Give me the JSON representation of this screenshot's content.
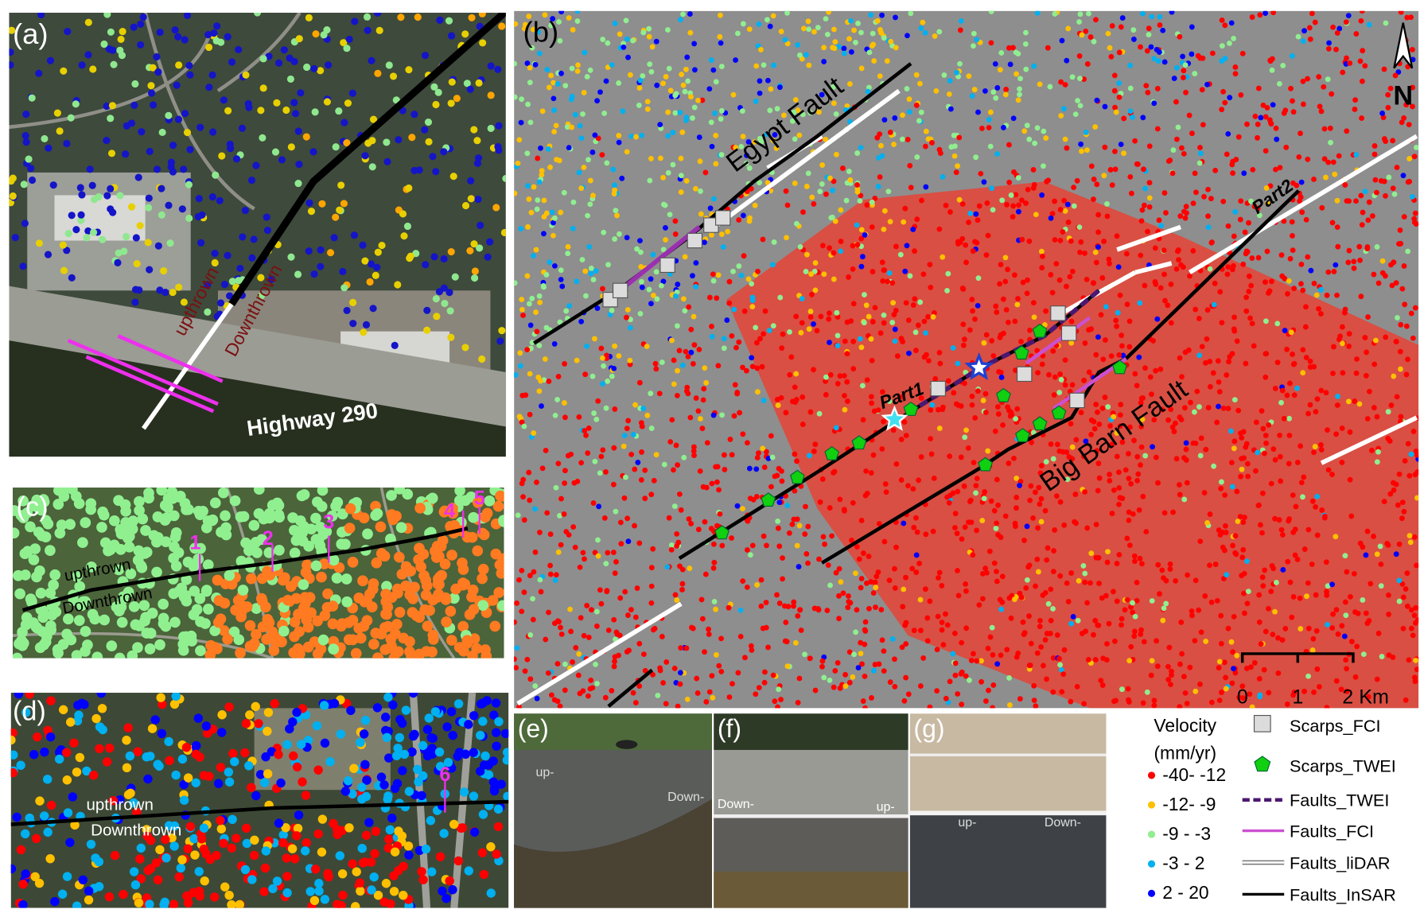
{
  "panels": {
    "a": {
      "label": "(a)",
      "upthrown": "upthrown",
      "downthrown": "Downthrown",
      "highway": "Highway 290"
    },
    "b": {
      "label": "(b)",
      "egypt_fault": "Egypt Fault",
      "big_barn_fault": "Big Barn Fault",
      "part1": "Part1",
      "part2": "Part2",
      "north": "N",
      "scale": [
        "0",
        "1",
        "2 Km"
      ]
    },
    "c": {
      "label": "(c)",
      "upthrown": "upthrown",
      "downthrown": "Downthrown",
      "sites": [
        "1",
        "2",
        "3",
        "4",
        "5"
      ]
    },
    "d": {
      "label": "(d)",
      "upthrown": "upthrown",
      "downthrown": "Downthrown",
      "sites": [
        "6"
      ]
    },
    "e": {
      "label": "(e)",
      "up": "up-",
      "down": "Down-"
    },
    "f": {
      "label": "(f)",
      "down": "Down-",
      "up": "up-"
    },
    "g": {
      "label": "(g)",
      "up": "up-",
      "down": "Down-"
    }
  },
  "legend": {
    "title": "Velocity",
    "unit": "(mm/yr)",
    "classes": [
      {
        "label": "-40- -12",
        "color": "#ff0000"
      },
      {
        "label": "-12- -9",
        "color": "#ffc000"
      },
      {
        "label": "-9 - -3",
        "color": "#90ee90"
      },
      {
        "label": "-3 - 2",
        "color": "#00b0f0"
      },
      {
        "label": "2 - 20",
        "color": "#0000ff"
      }
    ],
    "symbols": [
      "Scarps_FCI",
      "Scarps_TWEI",
      "Faults_TWEI",
      "Faults_FCI",
      "Faults_liDAR",
      "Faults_InSAR"
    ]
  }
}
